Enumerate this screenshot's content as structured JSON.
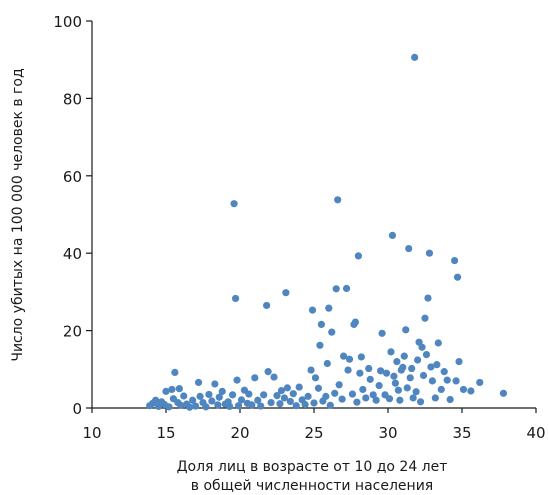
{
  "chart_data": {
    "type": "scatter",
    "title": "",
    "xlabel_lines": [
      "Доля лиц в возрасте от 10 до 24 лет",
      "в общей численности населения"
    ],
    "ylabel": "Число убитых на 100 000 человек в год",
    "xlim": [
      10,
      40
    ],
    "ylim": [
      0,
      100
    ],
    "x_ticks": [
      10,
      15,
      20,
      25,
      30,
      35,
      40
    ],
    "y_ticks": [
      0,
      20,
      40,
      60,
      80,
      100
    ],
    "x_tick_labels": [
      "10",
      "15",
      "20",
      "25",
      "30",
      "35",
      "40"
    ],
    "y_tick_labels": [
      "0",
      "20",
      "40",
      "60",
      "80",
      "100"
    ],
    "grid": false,
    "point_color": "#4f86c0",
    "series": [
      {
        "points": [
          [
            13.9,
            0.6
          ],
          [
            14.1,
            1.2
          ],
          [
            14.3,
            2.0
          ],
          [
            14.5,
            0.4
          ],
          [
            14.7,
            1.6
          ],
          [
            14.9,
            0.9
          ],
          [
            15.0,
            4.3
          ],
          [
            15.2,
            0.3
          ],
          [
            15.4,
            4.8
          ],
          [
            15.5,
            2.4
          ],
          [
            15.6,
            9.2
          ],
          [
            15.8,
            1.4
          ],
          [
            15.9,
            5.0
          ],
          [
            16.0,
            0.7
          ],
          [
            16.2,
            3.1
          ],
          [
            16.4,
            1.0
          ],
          [
            16.6,
            0.2
          ],
          [
            16.8,
            2.0
          ],
          [
            17.0,
            0.5
          ],
          [
            17.2,
            6.6
          ],
          [
            17.3,
            3.0
          ],
          [
            17.5,
            1.4
          ],
          [
            17.7,
            0.3
          ],
          [
            17.9,
            3.5
          ],
          [
            18.1,
            1.8
          ],
          [
            18.3,
            6.2
          ],
          [
            18.5,
            0.8
          ],
          [
            18.6,
            2.8
          ],
          [
            18.8,
            4.3
          ],
          [
            19.0,
            1.0
          ],
          [
            19.2,
            1.6
          ],
          [
            19.3,
            0.4
          ],
          [
            19.5,
            3.4
          ],
          [
            19.6,
            52.8
          ],
          [
            19.7,
            28.3
          ],
          [
            19.8,
            7.2
          ],
          [
            19.9,
            0.6
          ],
          [
            20.1,
            2.1
          ],
          [
            20.3,
            4.6
          ],
          [
            20.5,
            1.2
          ],
          [
            20.6,
            3.6
          ],
          [
            20.8,
            0.8
          ],
          [
            21.0,
            7.8
          ],
          [
            21.2,
            2.0
          ],
          [
            21.4,
            0.5
          ],
          [
            21.6,
            3.4
          ],
          [
            21.8,
            26.5
          ],
          [
            21.9,
            9.4
          ],
          [
            22.1,
            1.4
          ],
          [
            22.3,
            8.0
          ],
          [
            22.5,
            3.2
          ],
          [
            22.7,
            1.1
          ],
          [
            22.8,
            4.5
          ],
          [
            23.0,
            2.6
          ],
          [
            23.1,
            29.8
          ],
          [
            23.2,
            5.2
          ],
          [
            23.4,
            1.7
          ],
          [
            23.6,
            3.7
          ],
          [
            23.8,
            0.6
          ],
          [
            24.0,
            5.4
          ],
          [
            24.2,
            2.1
          ],
          [
            24.4,
            0.9
          ],
          [
            24.6,
            3.0
          ],
          [
            24.8,
            9.8
          ],
          [
            24.9,
            25.3
          ],
          [
            25.0,
            1.3
          ],
          [
            25.1,
            7.8
          ],
          [
            25.3,
            5.1
          ],
          [
            25.4,
            16.2
          ],
          [
            25.5,
            21.6
          ],
          [
            25.6,
            1.8
          ],
          [
            25.8,
            3.0
          ],
          [
            25.9,
            11.5
          ],
          [
            26.0,
            25.8
          ],
          [
            26.1,
            0.7
          ],
          [
            26.2,
            19.6
          ],
          [
            26.4,
            3.8
          ],
          [
            26.5,
            30.8
          ],
          [
            26.6,
            53.8
          ],
          [
            26.7,
            6.0
          ],
          [
            26.9,
            2.3
          ],
          [
            27.0,
            13.4
          ],
          [
            27.2,
            30.9
          ],
          [
            27.3,
            9.8
          ],
          [
            27.4,
            12.6
          ],
          [
            27.6,
            3.6
          ],
          [
            27.7,
            21.6
          ],
          [
            27.8,
            22.2
          ],
          [
            27.9,
            1.5
          ],
          [
            28.0,
            39.3
          ],
          [
            28.1,
            9.0
          ],
          [
            28.2,
            13.2
          ],
          [
            28.3,
            4.8
          ],
          [
            28.5,
            2.6
          ],
          [
            28.7,
            10.2
          ],
          [
            28.8,
            7.4
          ],
          [
            29.0,
            3.4
          ],
          [
            29.2,
            2.0
          ],
          [
            29.4,
            5.8
          ],
          [
            29.5,
            9.6
          ],
          [
            29.6,
            19.3
          ],
          [
            29.8,
            3.4
          ],
          [
            29.9,
            9.0
          ],
          [
            30.1,
            2.4
          ],
          [
            30.2,
            14.5
          ],
          [
            30.3,
            44.6
          ],
          [
            30.4,
            8.2
          ],
          [
            30.5,
            6.4
          ],
          [
            30.6,
            12.0
          ],
          [
            30.7,
            4.6
          ],
          [
            30.8,
            2.0
          ],
          [
            30.9,
            9.8
          ],
          [
            31.0,
            10.5
          ],
          [
            31.1,
            13.4
          ],
          [
            31.2,
            20.2
          ],
          [
            31.3,
            5.2
          ],
          [
            31.4,
            41.2
          ],
          [
            31.5,
            7.8
          ],
          [
            31.6,
            10.2
          ],
          [
            31.7,
            2.6
          ],
          [
            31.8,
            90.6
          ],
          [
            31.9,
            4.2
          ],
          [
            32.0,
            12.4
          ],
          [
            32.1,
            17.0
          ],
          [
            32.2,
            1.6
          ],
          [
            32.3,
            15.7
          ],
          [
            32.4,
            8.4
          ],
          [
            32.5,
            23.2
          ],
          [
            32.6,
            13.8
          ],
          [
            32.7,
            28.4
          ],
          [
            32.8,
            40.0
          ],
          [
            32.9,
            10.6
          ],
          [
            33.0,
            7.0
          ],
          [
            33.2,
            2.6
          ],
          [
            33.3,
            11.2
          ],
          [
            33.4,
            16.8
          ],
          [
            33.6,
            4.8
          ],
          [
            33.8,
            9.4
          ],
          [
            34.0,
            7.2
          ],
          [
            34.2,
            2.2
          ],
          [
            34.5,
            38.1
          ],
          [
            34.6,
            7.0
          ],
          [
            34.7,
            33.8
          ],
          [
            34.8,
            12.0
          ],
          [
            35.1,
            4.8
          ],
          [
            35.6,
            4.4
          ],
          [
            36.2,
            6.6
          ],
          [
            37.8,
            3.8
          ]
        ]
      }
    ]
  }
}
